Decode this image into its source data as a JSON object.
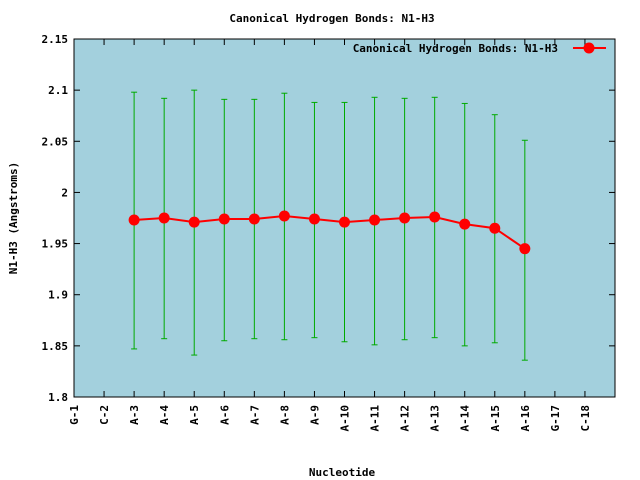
{
  "chart_data": {
    "type": "line",
    "title": "Canonical Hydrogen Bonds: N1-H3",
    "xlabel": "Nucleotide",
    "ylabel": "N1-H3 (Angstroms)",
    "categories": [
      "G-1",
      "C-2",
      "A-3",
      "A-4",
      "A-5",
      "A-6",
      "A-7",
      "A-8",
      "A-9",
      "A-10",
      "A-11",
      "A-12",
      "A-13",
      "A-14",
      "A-15",
      "A-16",
      "G-17",
      "C-18"
    ],
    "ylim": [
      1.8,
      2.15
    ],
    "yticks": [
      1.8,
      1.85,
      1.9,
      1.95,
      2,
      2.05,
      2.1,
      2.15
    ],
    "ytick_labels": [
      "1.8",
      "1.85",
      "1.9",
      "1.95",
      "2",
      "2.05",
      "2.1",
      "2.15"
    ],
    "series": [
      {
        "name": "Canonical Hydrogen Bonds: N1-H3",
        "color": "#ff0000",
        "x": [
          "A-3",
          "A-4",
          "A-5",
          "A-6",
          "A-7",
          "A-8",
          "A-9",
          "A-10",
          "A-11",
          "A-12",
          "A-13",
          "A-14",
          "A-15",
          "A-16"
        ],
        "values": [
          1.973,
          1.975,
          1.971,
          1.974,
          1.974,
          1.977,
          1.974,
          1.971,
          1.973,
          1.975,
          1.976,
          1.969,
          1.965,
          1.945
        ],
        "err_low": [
          1.847,
          1.857,
          1.841,
          1.855,
          1.857,
          1.856,
          1.858,
          1.854,
          1.851,
          1.856,
          1.858,
          1.85,
          1.853,
          1.836
        ],
        "err_high": [
          2.098,
          2.092,
          2.1,
          2.091,
          2.091,
          2.097,
          2.088,
          2.088,
          2.093,
          2.092,
          2.093,
          2.087,
          2.076,
          2.051
        ]
      }
    ],
    "errorbar_color": "#00aa00",
    "plot_bg": "#a3d0dd",
    "grid": false,
    "legend_position": "top-right"
  }
}
